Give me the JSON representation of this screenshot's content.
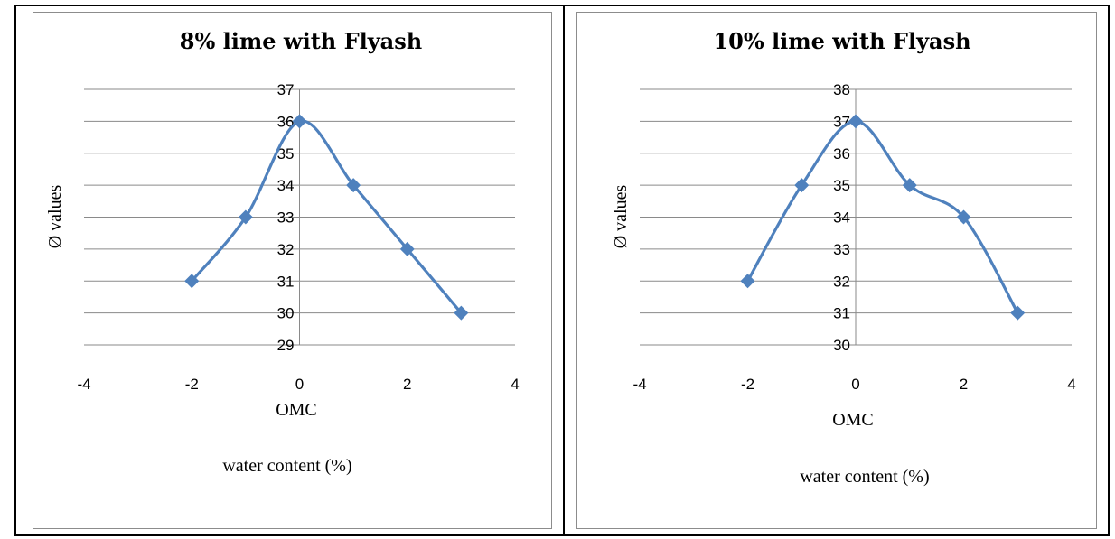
{
  "chart_data": [
    {
      "type": "scatter",
      "title": "8% lime with Flyash",
      "ylabel": "Ø values",
      "xlabel_1": "OMC",
      "xlabel_2": "water content (%)",
      "xlim": [
        -4,
        4
      ],
      "ylim": [
        29,
        37
      ],
      "x_ticks": [
        -4,
        -2,
        0,
        2,
        4
      ],
      "y_ticks": [
        29,
        30,
        31,
        32,
        33,
        34,
        35,
        36,
        37
      ],
      "grid": true,
      "smooth": true,
      "series": [
        {
          "x": [
            -2,
            -1,
            0,
            1,
            2,
            3
          ],
          "y": [
            31,
            33,
            36,
            34,
            32,
            30
          ]
        }
      ],
      "color": "#4f81bd"
    },
    {
      "type": "scatter",
      "title": "10% lime with Flyash",
      "ylabel": "Ø values",
      "xlabel_1": "OMC",
      "xlabel_2": "water content (%)",
      "xlim": [
        -4,
        4
      ],
      "ylim": [
        30,
        38
      ],
      "x_ticks": [
        -4,
        -2,
        0,
        2,
        4
      ],
      "y_ticks": [
        30,
        31,
        32,
        33,
        34,
        35,
        36,
        37,
        38
      ],
      "grid": true,
      "smooth": true,
      "series": [
        {
          "x": [
            -2,
            -1,
            0,
            1,
            2,
            3
          ],
          "y": [
            32,
            35,
            37,
            35,
            34,
            31
          ]
        }
      ],
      "color": "#4f81bd"
    }
  ]
}
